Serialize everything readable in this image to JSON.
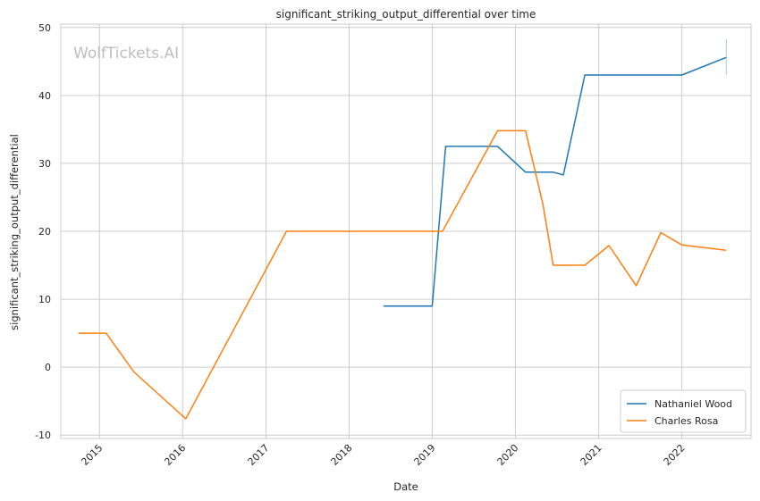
{
  "watermark": "WolfTickets.AI",
  "chart_data": {
    "type": "line",
    "title": "significant_striking_output_differential over time",
    "xlabel": "Date",
    "ylabel": "significant_striking_output_differential",
    "xlim": [
      "2014-07-15",
      "2022-11-01"
    ],
    "ylim": [
      -10.5,
      50.5
    ],
    "x_ticks": [
      "2015",
      "2016",
      "2017",
      "2018",
      "2019",
      "2020",
      "2021",
      "2022"
    ],
    "y_ticks": [
      -10,
      0,
      10,
      20,
      30,
      40,
      50
    ],
    "grid": true,
    "legend_position": "lower-right",
    "colors": {
      "Nathaniel Wood": "#1f77b4",
      "Charles Rosa": "#ff7f0e"
    },
    "series": [
      {
        "name": "Nathaniel Wood",
        "points": [
          [
            "2018-06-01",
            9.0
          ],
          [
            "2019-01-01",
            9.0
          ],
          [
            "2019-03-01",
            32.5
          ],
          [
            "2019-10-15",
            32.5
          ],
          [
            "2020-02-15",
            28.7
          ],
          [
            "2020-06-15",
            28.7
          ],
          [
            "2020-07-30",
            28.3
          ],
          [
            "2020-11-01",
            43.0
          ],
          [
            "2022-01-01",
            43.0
          ],
          [
            "2022-07-15",
            45.6
          ]
        ],
        "error_bar": {
          "x": "2022-07-15",
          "low": 43.0,
          "high": 48.3
        }
      },
      {
        "name": "Charles Rosa",
        "points": [
          [
            "2014-10-01",
            5.0
          ],
          [
            "2015-01-30",
            5.0
          ],
          [
            "2015-06-01",
            -0.7
          ],
          [
            "2016-01-15",
            -7.6
          ],
          [
            "2017-04-01",
            20.0
          ],
          [
            "2019-02-15",
            20.0
          ],
          [
            "2019-10-15",
            34.8
          ],
          [
            "2020-02-15",
            34.8
          ],
          [
            "2020-05-01",
            24.0
          ],
          [
            "2020-06-15",
            15.0
          ],
          [
            "2020-11-01",
            15.0
          ],
          [
            "2021-02-15",
            17.9
          ],
          [
            "2021-06-15",
            12.0
          ],
          [
            "2021-10-01",
            19.8
          ],
          [
            "2022-01-01",
            18.0
          ],
          [
            "2022-07-15",
            17.2
          ]
        ]
      }
    ]
  }
}
